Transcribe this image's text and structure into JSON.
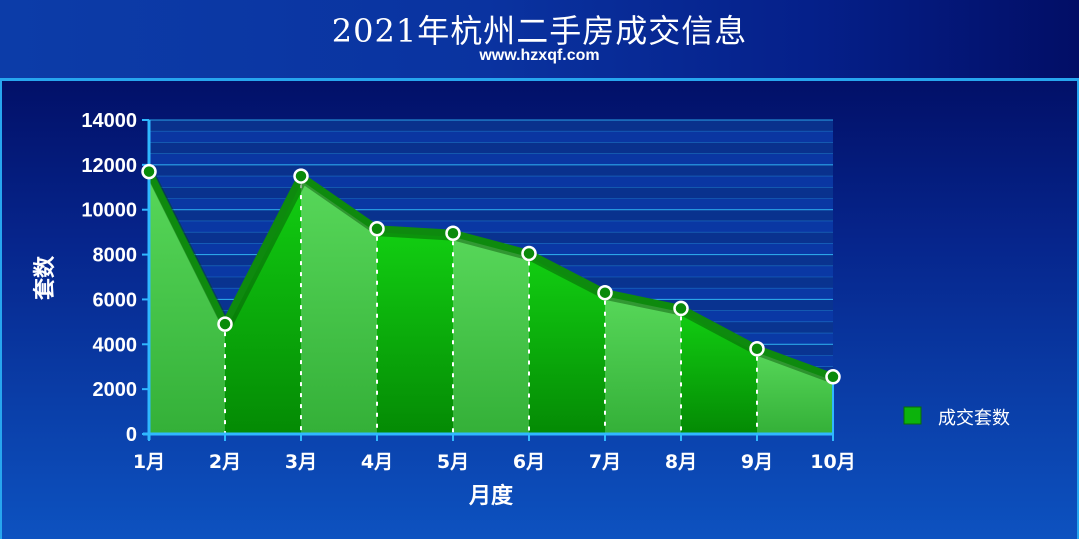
{
  "header": {
    "title": "2021年杭州二手房成交信息",
    "subtitle": "www.hzxqf.com"
  },
  "chart_data": {
    "type": "area",
    "categories": [
      "1月",
      "2月",
      "3月",
      "4月",
      "5月",
      "6月",
      "7月",
      "8月",
      "9月",
      "10月"
    ],
    "series": [
      {
        "name": "成交套数",
        "values": [
          11700,
          4900,
          11500,
          9150,
          8950,
          8050,
          6300,
          5600,
          3800,
          2550
        ]
      }
    ],
    "ylim": [
      0,
      14000
    ],
    "yticks": [
      "0",
      "2000",
      "4000",
      "6000",
      "8000",
      "10000",
      "12000",
      "14000"
    ],
    "xlabel": "月度",
    "ylabel": "套数",
    "grid": true,
    "legend_position": "right",
    "colors": {
      "area_light": "#46c248",
      "area_dark": "#08a408",
      "line": "#0e8a0e",
      "marker_fill": "#0a8a0a",
      "marker_stroke": "#ffffff",
      "grid": "#2fb0f0",
      "axis": "#2fb8ff",
      "legend_swatch": "#0cb30c"
    }
  }
}
